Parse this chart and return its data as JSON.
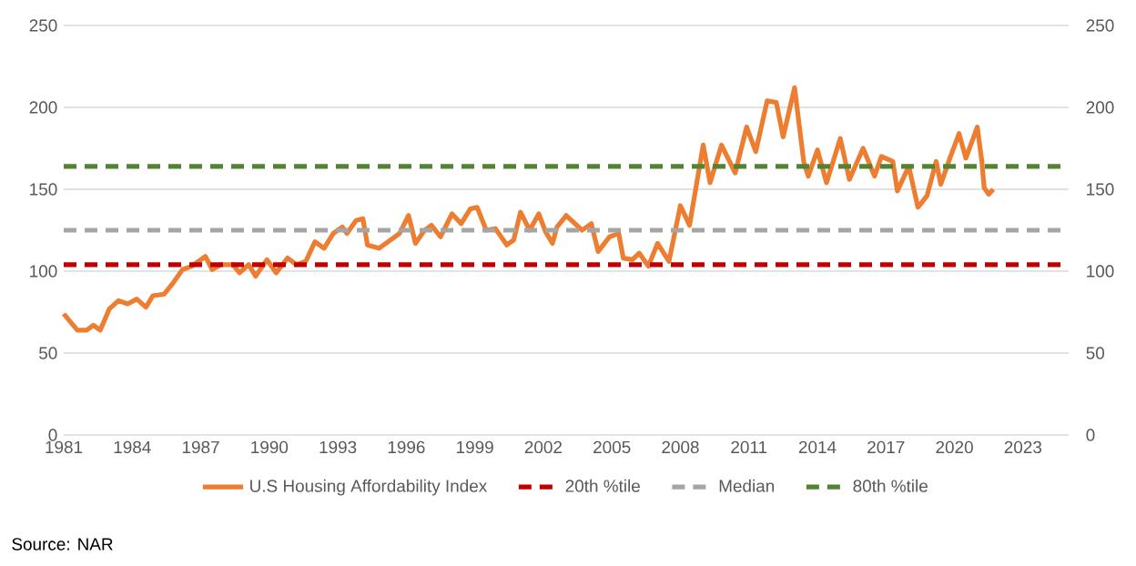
{
  "chart_data": {
    "type": "line",
    "xlim": [
      1981,
      2025
    ],
    "xticks": [
      1981,
      1984,
      1987,
      1990,
      1993,
      1996,
      1999,
      2002,
      2005,
      2008,
      2011,
      2014,
      2017,
      2020,
      2023
    ],
    "ylim": [
      0,
      250
    ],
    "yticks": [
      0,
      50,
      100,
      150,
      200,
      250
    ],
    "y2lim": [
      0,
      250
    ],
    "y2ticks": [
      0,
      50,
      100,
      150,
      200,
      250
    ],
    "grid": "y",
    "legend": "bottom",
    "series": [
      {
        "name": "U.S Housing Affordability Index",
        "color": "#ed7d31",
        "line_style": "solid",
        "x": [
          1981.0,
          1981.6,
          1982.0,
          1982.3,
          1982.6,
          1983.0,
          1983.4,
          1983.8,
          1984.2,
          1984.6,
          1984.9,
          1985.4,
          1985.8,
          1986.2,
          1986.6,
          1987.2,
          1987.5,
          1987.9,
          1988.4,
          1988.7,
          1989.1,
          1989.4,
          1989.9,
          1990.3,
          1990.8,
          1991.2,
          1991.6,
          1992.0,
          1992.4,
          1992.8,
          1993.2,
          1993.4,
          1993.8,
          1994.1,
          1994.3,
          1994.8,
          1995.3,
          1995.7,
          1996.1,
          1996.4,
          1996.8,
          1997.1,
          1997.5,
          1998.0,
          1998.4,
          1998.8,
          1999.1,
          1999.5,
          1999.9,
          2000.4,
          2000.7,
          2001.0,
          2001.4,
          2001.8,
          2002.1,
          2002.4,
          2002.6,
          2003.0,
          2003.7,
          2004.1,
          2004.4,
          2004.9,
          2005.3,
          2005.5,
          2005.9,
          2006.2,
          2006.6,
          2007.0,
          2007.5,
          2008.0,
          2008.4,
          2009.0,
          2009.3,
          2009.8,
          2010.4,
          2010.9,
          2011.3,
          2011.8,
          2012.2,
          2012.5,
          2013.0,
          2013.4,
          2013.6,
          2014.0,
          2014.4,
          2015.0,
          2015.4,
          2016.0,
          2016.5,
          2016.8,
          2017.3,
          2017.5,
          2018.0,
          2018.4,
          2018.8,
          2019.2,
          2019.4,
          2019.8,
          2020.2,
          2020.5,
          2021.0,
          2021.2,
          2021.3,
          2021.5,
          2021.7
        ],
        "values": [
          74,
          64,
          64,
          67,
          64,
          77,
          82,
          80,
          83,
          78,
          85,
          86,
          93,
          101,
          103,
          109,
          101,
          104,
          104,
          99,
          104,
          97,
          107,
          99,
          108,
          104,
          106,
          118,
          114,
          123,
          127,
          123,
          131,
          132,
          116,
          114,
          119,
          123,
          134,
          117,
          125,
          128,
          121,
          135,
          129,
          138,
          139,
          125,
          126,
          116,
          119,
          136,
          125,
          135,
          124,
          117,
          127,
          134,
          125,
          129,
          112,
          121,
          123,
          108,
          107,
          111,
          103,
          117,
          106,
          140,
          128,
          177,
          154,
          177,
          160,
          188,
          173,
          204,
          203,
          182,
          212,
          167,
          158,
          174,
          154,
          181,
          156,
          175,
          158,
          170,
          167,
          149,
          164,
          139,
          146,
          167,
          153,
          169,
          184,
          169,
          188,
          167,
          151,
          147,
          150
        ]
      }
    ],
    "ref_lines": [
      {
        "axis": "y",
        "value": 104,
        "label": "20th %tile",
        "color": "#c00000",
        "line_style": "dashed"
      },
      {
        "axis": "y",
        "value": 125,
        "label": "Median",
        "color": "#a5a5a5",
        "line_style": "dashed"
      },
      {
        "axis": "y",
        "value": 164,
        "label": "80th %tile",
        "color": "#548235",
        "line_style": "dashed"
      }
    ],
    "annotations": [
      "Source: NAR"
    ]
  }
}
